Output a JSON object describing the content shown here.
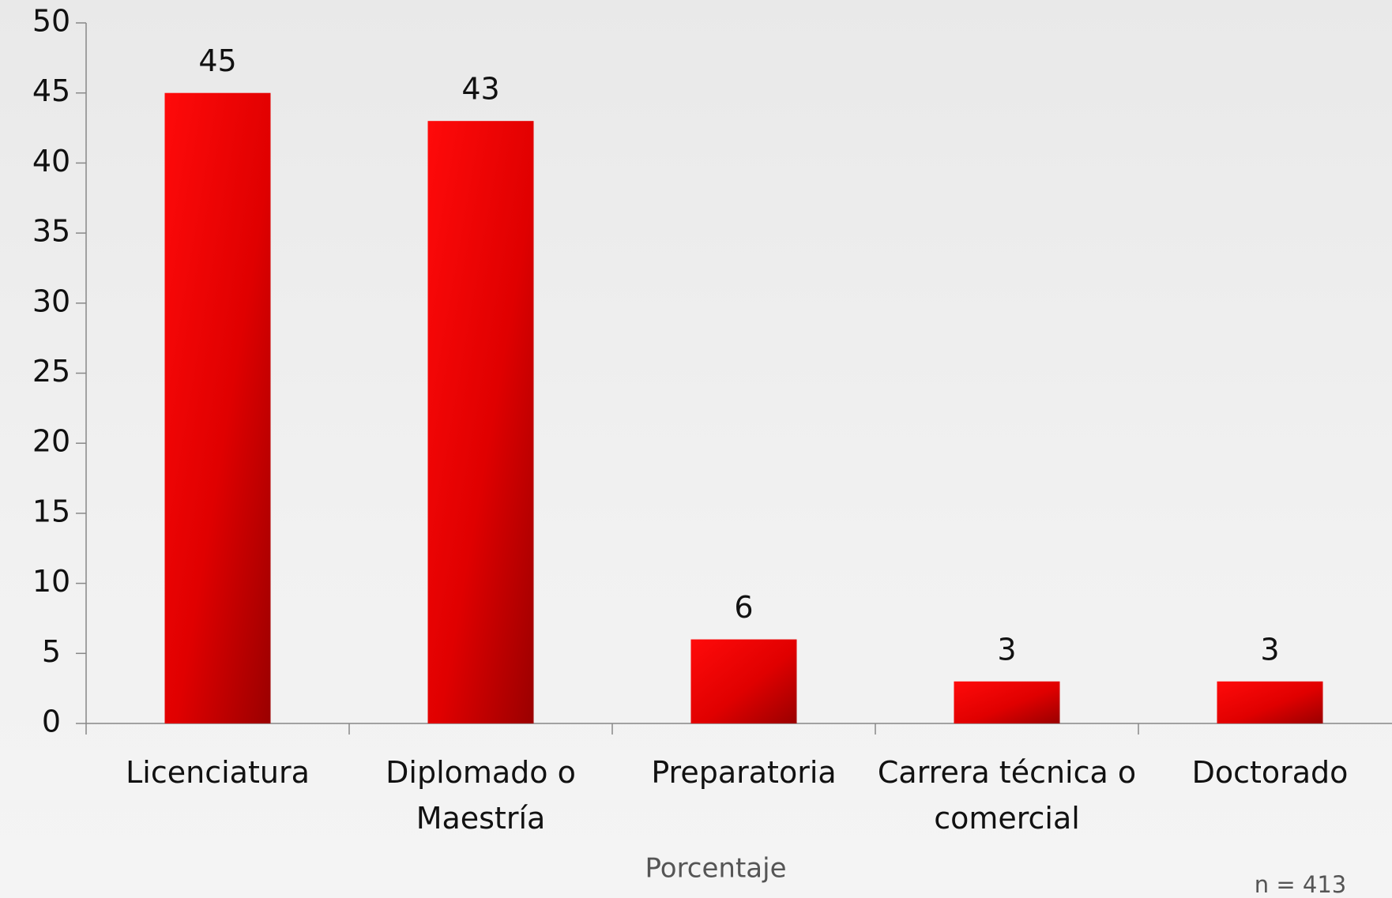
{
  "chart_data": {
    "type": "bar",
    "categories": [
      "Licenciatura",
      "Diplomado o Maestría",
      "Preparatoria",
      "Carrera técnica o comercial",
      "Doctorado"
    ],
    "values": [
      45,
      43,
      6,
      3,
      3
    ],
    "color": "#e00000",
    "ylim": [
      0,
      50
    ],
    "yticks": [
      0,
      5,
      10,
      15,
      20,
      25,
      30,
      35,
      40,
      45,
      50
    ],
    "x_label": "Porcentaje",
    "annotation": "n = 413",
    "grid": false
  }
}
